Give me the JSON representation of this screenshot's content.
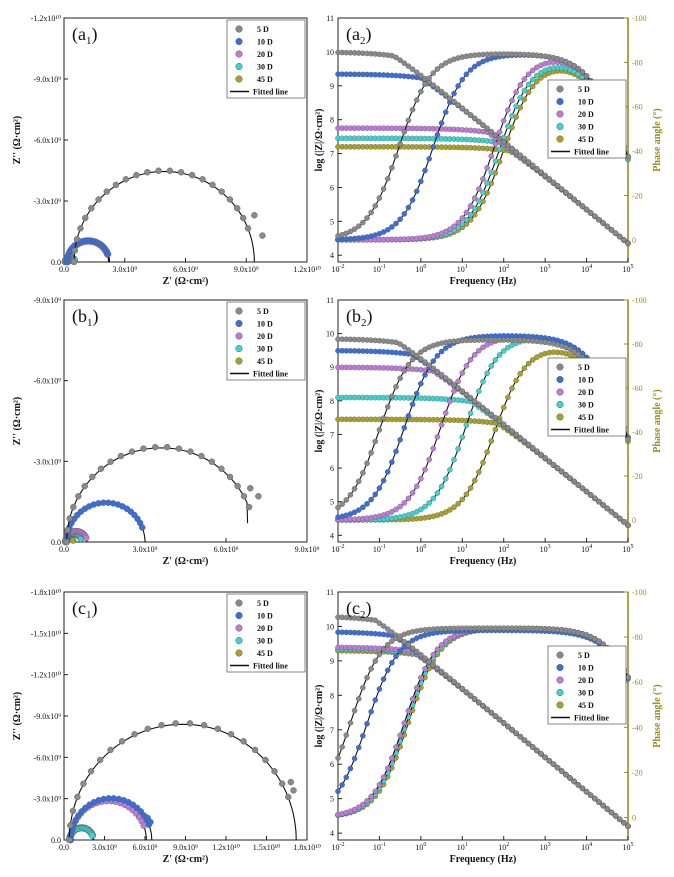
{
  "colors": {
    "series": [
      "#8a8a8a",
      "#3a6fd8",
      "#c07ad8",
      "#3fd3d0",
      "#a9a22a"
    ],
    "fit": "#111111",
    "phase_axis": "#9a8a1e"
  },
  "chart_data": [
    {
      "id": "a1",
      "type": "scatter",
      "panel_label": "a",
      "panel_sub": "1",
      "xlabel": "Z' (Ω·cm²)",
      "ylabel": "Z'' (Ω·cm²)",
      "xlim": [
        0,
        12000000000.0
      ],
      "ylim": [
        0,
        12000000000.0
      ],
      "y_inverted_sign": true,
      "xticks": [
        {
          "v": 0,
          "t": "0.0"
        },
        {
          "v": 3000000000.0,
          "t": "3.0x10⁹"
        },
        {
          "v": 6000000000.0,
          "t": "6.0x10⁹"
        },
        {
          "v": 9000000000.0,
          "t": "9.0x10⁹"
        },
        {
          "v": 12000000000.0,
          "t": "1.2x10¹⁰"
        }
      ],
      "yticks": [
        {
          "v": 0,
          "t": "0.0"
        },
        {
          "v": 3000000000.0,
          "t": "-3.0x10⁹"
        },
        {
          "v": 6000000000.0,
          "t": "-6.0x10⁹"
        },
        {
          "v": 9000000000.0,
          "t": "-9.0x10⁹"
        },
        {
          "v": 12000000000.0,
          "t": "-1.2x10¹⁰"
        }
      ],
      "legend": [
        "5 D",
        "10 D",
        "20 D",
        "30 D",
        "45 D",
        "Fitted line"
      ],
      "series": [
        {
          "name": "5 D",
          "arc": {
            "center": 4950000000.0,
            "radius": 4450000000.0
          },
          "exp_end": [
            [
              9400000000.0,
              2300000000.0
            ],
            [
              9800000000.0,
              1300000000.0
            ]
          ]
        },
        {
          "name": "10 D",
          "arc": {
            "center": 1200000000.0,
            "radius": 1050000000.0
          }
        },
        {
          "name": "20 D",
          "arc": {
            "center": 1200000000.0,
            "radius": 1000000000.0
          }
        },
        {
          "name": "30 D",
          "arc": {
            "center": 300000000.0,
            "radius": 250000000.0
          }
        },
        {
          "name": "45 D",
          "arc": {
            "center": 200000000.0,
            "radius": 150000000.0
          }
        }
      ]
    },
    {
      "id": "a2",
      "type": "line",
      "panel_label": "a",
      "panel_sub": "2",
      "xlabel": "Frequency (Hz)",
      "ylabel": "log (|Z|/Ω·cm²)",
      "y2label": "Phase angle (°)",
      "xlim": [
        -2,
        5
      ],
      "ylim": [
        3.8,
        11
      ],
      "y2lim": [
        10,
        -100
      ],
      "log_x": true,
      "xticks": [
        -2,
        -1,
        0,
        1,
        2,
        3,
        4,
        5
      ],
      "yticks": [
        4,
        5,
        6,
        7,
        8,
        9,
        10,
        11
      ],
      "y2ticks": [
        0,
        -20,
        -40,
        -60,
        -80,
        -100
      ],
      "legend": [
        "5 D",
        "10 D",
        "20 D",
        "30 D",
        "45 D",
        "Fitted line"
      ],
      "series": [
        {
          "name": "5 D",
          "logZ_low": 10.0,
          "logZ_high": 4.35,
          "f_break": 0.5,
          "phase_max": -84,
          "phase_low_freq": 0.3,
          "phase_high_freq": 80000.0
        },
        {
          "name": "10 D",
          "logZ_low": 9.35,
          "logZ_high": 4.35,
          "f_break": 1.5,
          "phase_max": -84,
          "phase_low_freq": 2.0,
          "phase_high_freq": 80000.0
        },
        {
          "name": "20 D",
          "logZ_low": 7.75,
          "logZ_high": 4.35,
          "f_break": 50,
          "phase_max": -84,
          "phase_low_freq": 60,
          "phase_high_freq": 80000.0
        },
        {
          "name": "30 D",
          "logZ_low": 7.45,
          "logZ_high": 4.35,
          "f_break": 80,
          "phase_max": -82,
          "phase_low_freq": 80,
          "phase_high_freq": 80000.0
        },
        {
          "name": "45 D",
          "logZ_low": 7.2,
          "logZ_high": 4.35,
          "f_break": 120,
          "phase_max": -81,
          "phase_low_freq": 100,
          "phase_high_freq": 80000.0
        }
      ]
    },
    {
      "id": "b1",
      "type": "scatter",
      "panel_label": "b",
      "panel_sub": "1",
      "xlabel": "Z' (Ω·cm²)",
      "ylabel": "Z'' (Ω·cm²)",
      "xlim": [
        0,
        9000000000.0
      ],
      "ylim": [
        0,
        9000000000.0
      ],
      "y_inverted_sign": true,
      "xticks": [
        {
          "v": 0,
          "t": "0.0"
        },
        {
          "v": 3000000000.0,
          "t": "3.0x10⁹"
        },
        {
          "v": 6000000000.0,
          "t": "6.0x10⁹"
        },
        {
          "v": 9000000000.0,
          "t": "9.0x10⁹"
        }
      ],
      "yticks": [
        {
          "v": 0,
          "t": "0.0"
        },
        {
          "v": 3000000000.0,
          "t": "-3.0x10⁹"
        },
        {
          "v": 6000000000.0,
          "t": "-6.0x10⁹"
        },
        {
          "v": 9000000000.0,
          "t": "-9.0x10⁹"
        }
      ],
      "legend": [
        "5 D",
        "10 D",
        "20 D",
        "30 D",
        "45 D",
        "Fitted line"
      ],
      "series": [
        {
          "name": "5 D",
          "arc": {
            "center": 3600000000.0,
            "radius": 3500000000.0
          },
          "fit_end": [
            6800000000.0,
            700000000.0
          ],
          "exp_end": [
            [
              6900000000.0,
              2000000000.0
            ],
            [
              7200000000.0,
              1700000000.0
            ]
          ]
        },
        {
          "name": "10 D",
          "arc": {
            "center": 1550000000.0,
            "radius": 1450000000.0
          }
        },
        {
          "name": "20 D",
          "arc": {
            "center": 450000000.0,
            "radius": 400000000.0
          }
        },
        {
          "name": "30 D",
          "arc": {
            "center": 350000000.0,
            "radius": 300000000.0
          }
        },
        {
          "name": "45 D",
          "arc": {
            "center": 200000000.0,
            "radius": 150000000.0
          }
        }
      ]
    },
    {
      "id": "b2",
      "type": "line",
      "panel_label": "b",
      "panel_sub": "2",
      "xlabel": "Frequency (Hz)",
      "ylabel": "log (|Z|/Ω·cm²)",
      "y2label": "Phase angle (°)",
      "xlim": [
        -2,
        5
      ],
      "ylim": [
        3.8,
        11
      ],
      "y2lim": [
        10,
        -100
      ],
      "log_x": true,
      "xticks": [
        -2,
        -1,
        0,
        1,
        2,
        3,
        4,
        5
      ],
      "yticks": [
        4,
        5,
        6,
        7,
        8,
        9,
        10,
        11
      ],
      "y2ticks": [
        0,
        -20,
        -40,
        -60,
        -80,
        -100
      ],
      "legend": [
        "5 D",
        "10 D",
        "20 D",
        "30 D",
        "45 D",
        "Fitted line"
      ],
      "series": [
        {
          "name": "5 D",
          "logZ_low": 9.85,
          "logZ_high": 4.3,
          "f_break": 0.3,
          "phase_max": -82,
          "phase_low_freq": 0.1,
          "phase_high_freq": 80000.0
        },
        {
          "name": "10 D",
          "logZ_low": 9.5,
          "logZ_high": 4.3,
          "f_break": 0.8,
          "phase_max": -84,
          "phase_low_freq": 0.4,
          "phase_high_freq": 80000.0
        },
        {
          "name": "20 D",
          "logZ_low": 9.0,
          "logZ_high": 4.3,
          "f_break": 3.0,
          "phase_max": -84,
          "phase_low_freq": 3.0,
          "phase_high_freq": 80000.0
        },
        {
          "name": "30 D",
          "logZ_low": 8.1,
          "logZ_high": 4.3,
          "f_break": 15,
          "phase_max": -84,
          "phase_low_freq": 12,
          "phase_high_freq": 80000.0
        },
        {
          "name": "45 D",
          "logZ_low": 7.45,
          "logZ_high": 4.3,
          "f_break": 50,
          "phase_max": -80,
          "phase_low_freq": 60,
          "phase_high_freq": 80000.0
        }
      ]
    },
    {
      "id": "c1",
      "type": "scatter",
      "panel_label": "c",
      "panel_sub": "1",
      "xlabel": "Z' (Ω·cm²)",
      "ylabel": "Z'' (Ω·cm²)",
      "xlim": [
        0,
        18000000000.0
      ],
      "ylim": [
        0,
        18000000000.0
      ],
      "y_inverted_sign": true,
      "xticks": [
        {
          "v": 0,
          "t": "0.0"
        },
        {
          "v": 3000000000.0,
          "t": "3.0x10⁹"
        },
        {
          "v": 6000000000.0,
          "t": "6.0x10⁹"
        },
        {
          "v": 9000000000.0,
          "t": "9.0x10⁹"
        },
        {
          "v": 12000000000.0,
          "t": "1.2x10¹⁰"
        },
        {
          "v": 15000000000.0,
          "t": "1.5x10¹⁰"
        },
        {
          "v": 18000000000.0,
          "t": "1.8x10¹⁰"
        }
      ],
      "yticks": [
        {
          "v": 0,
          "t": "0.0"
        },
        {
          "v": 3000000000.0,
          "t": "-3.0x10⁹"
        },
        {
          "v": 6000000000.0,
          "t": "-6.0x10⁹"
        },
        {
          "v": 9000000000.0,
          "t": "-9.0x10⁹"
        },
        {
          "v": 12000000000.0,
          "t": "-1.2x10¹⁰"
        },
        {
          "v": 15000000000.0,
          "t": "-1.5x10¹⁰"
        },
        {
          "v": 18000000000.0,
          "t": "-1.8x10¹⁰"
        }
      ],
      "legend": [
        "5 D",
        "10 D",
        "20 D",
        "30 D",
        "45 D",
        "Fitted line"
      ],
      "series": [
        {
          "name": "5 D",
          "arc": {
            "center": 8800000000.0,
            "radius": 8400000000.0
          },
          "exp_end": [
            [
              16800000000.0,
              4200000000.0
            ],
            [
              17000000000.0,
              3600000000.0
            ]
          ]
        },
        {
          "name": "10 D",
          "arc": {
            "center": 3500000000.0,
            "radius": 3000000000.0
          },
          "exp_end": [
            [
              6200000000.0,
              1600000000.0
            ],
            [
              6400000000.0,
              1300000000.0
            ]
          ]
        },
        {
          "name": "20 D",
          "arc": {
            "center": 3300000000.0,
            "radius": 2800000000.0
          }
        },
        {
          "name": "30 D",
          "arc": {
            "center": 1300000000.0,
            "radius": 850000000.0
          }
        },
        {
          "name": "45 D",
          "arc": {
            "center": 1300000000.0,
            "radius": 900000000.0
          }
        }
      ]
    },
    {
      "id": "c2",
      "type": "line",
      "panel_label": "c",
      "panel_sub": "2",
      "xlabel": "Frequency (Hz)",
      "ylabel": "log (|Z|/Ω·cm²)",
      "y2label": "Phase angle (°)",
      "xlim": [
        -2,
        5
      ],
      "ylim": [
        3.8,
        11
      ],
      "y2lim": [
        10,
        -100
      ],
      "log_x": true,
      "xticks": [
        -2,
        -1,
        0,
        1,
        2,
        3,
        4,
        5
      ],
      "yticks": [
        4,
        5,
        6,
        7,
        8,
        9,
        10,
        11
      ],
      "y2ticks": [
        0,
        -20,
        -40,
        -60,
        -80,
        -100
      ],
      "legend": [
        "5 D",
        "10 D",
        "20 D",
        "30 D",
        "45 D",
        "Fitted line"
      ],
      "series": [
        {
          "name": "5 D",
          "logZ_low": 10.3,
          "logZ_high": 4.2,
          "f_break": 0.02,
          "phase_max": -84,
          "phase_low_freq": 0.02,
          "phase_high_freq": 300000.0
        },
        {
          "name": "10 D",
          "logZ_low": 9.85,
          "logZ_high": 4.2,
          "f_break": 0.05,
          "phase_max": -83,
          "phase_low_freq": 0.05,
          "phase_high_freq": 300000.0
        },
        {
          "name": "20 D",
          "logZ_low": 9.4,
          "logZ_high": 4.2,
          "f_break": 0.01,
          "phase_max": -84,
          "phase_low_freq": 0.4,
          "phase_high_freq": 300000.0
        },
        {
          "name": "30 D",
          "logZ_low": 9.35,
          "logZ_high": 4.2,
          "f_break": 0.01,
          "phase_max": -84,
          "phase_low_freq": 0.45,
          "phase_high_freq": 300000.0
        },
        {
          "name": "45 D",
          "logZ_low": 9.3,
          "logZ_high": 4.2,
          "f_break": 0.01,
          "phase_max": -84,
          "phase_low_freq": 0.5,
          "phase_high_freq": 300000.0
        }
      ]
    }
  ]
}
